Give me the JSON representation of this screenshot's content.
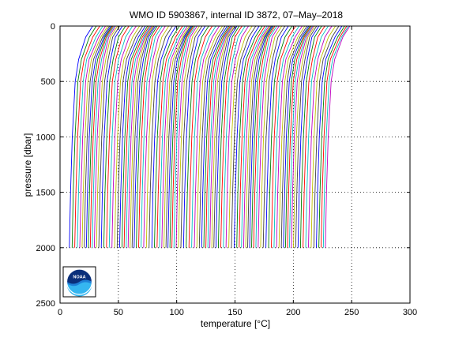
{
  "chart_data": {
    "type": "line",
    "title": "WMO ID 5903867, internal ID 3872, 07–May–2018",
    "xlabel": "temperature [°C]",
    "ylabel": "pressure [dbar]",
    "xlim": [
      0,
      300
    ],
    "ylim": [
      2500,
      0
    ],
    "y_reversed": true,
    "xticks": [
      0,
      50,
      100,
      150,
      200,
      250,
      300
    ],
    "yticks": [
      0,
      500,
      1000,
      1500,
      2000,
      2500
    ],
    "xtick_labels": [
      "0",
      "50",
      "100",
      "150",
      "200",
      "250",
      "300"
    ],
    "ytick_labels": [
      "0",
      "500",
      "1000",
      "1500",
      "2000",
      "2500"
    ],
    "grid": "dotted",
    "profile_pressures": [
      0,
      100,
      300,
      500,
      1000,
      1500,
      2000
    ],
    "profile_shape_offsets": [
      20,
      14,
      8,
      5,
      2.5,
      1,
      0
    ],
    "profile_count": 110,
    "profile_base_first": 8,
    "profile_base_last": 227,
    "series_colors": [
      "#0000ff",
      "#008000",
      "#ff0000",
      "#00bfbf",
      "#bf00bf",
      "#bfbf00",
      "#404040"
    ]
  },
  "logo": {
    "text": "NOAA"
  }
}
